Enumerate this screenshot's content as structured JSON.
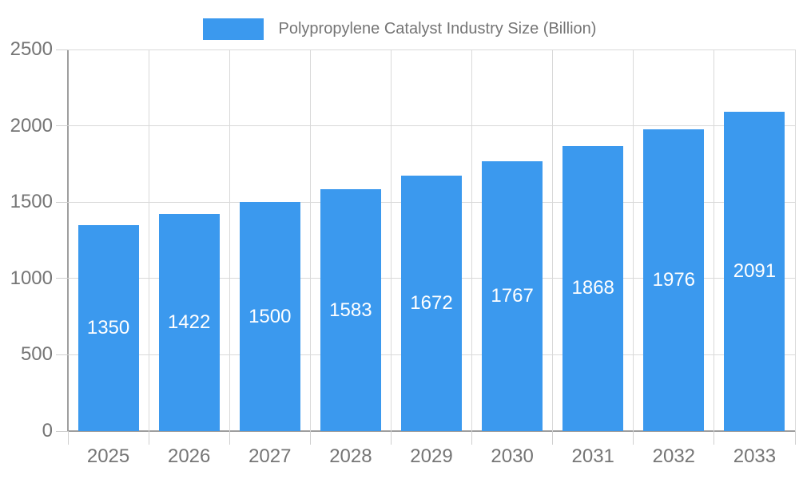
{
  "chart_data": {
    "type": "bar",
    "title": "",
    "legend": [
      "Polypropylene Catalyst Industry Size (Billion)"
    ],
    "legend_position": "top-center",
    "categories": [
      "2025",
      "2026",
      "2027",
      "2028",
      "2029",
      "2030",
      "2031",
      "2032",
      "2033"
    ],
    "values": [
      1350,
      1422,
      1500,
      1583,
      1672,
      1767,
      1868,
      1976,
      2091
    ],
    "xlabel": "",
    "ylabel": "",
    "ylim": [
      0,
      2500
    ],
    "yticks": [
      0,
      500,
      1000,
      1500,
      2000,
      2500
    ],
    "grid": true,
    "data_labels_inside_bars": true,
    "colors": {
      "bar": "#3B99EE",
      "data_label": "#FFFFFF",
      "axis_text": "#757575",
      "grid_line": "#D9D9D9",
      "tick_line": "#CFCFCF",
      "axis_line": "#9E9E9E"
    }
  }
}
